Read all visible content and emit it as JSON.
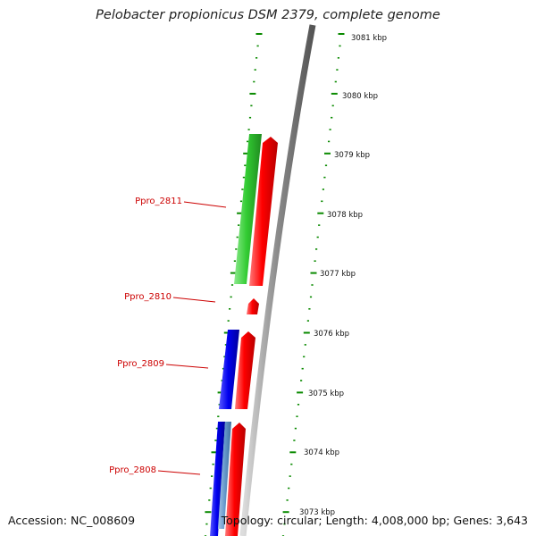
{
  "title": "Pelobacter propionicus DSM 2379, complete genome",
  "accession": "Accession: NC_008609",
  "summary": "Topology: circular; Length: 4,008,000 bp; Genes: 3,643",
  "colors": {
    "backbone": "#9a9a9a",
    "ticks": "#0a8a00",
    "gene_label": "#cc0000",
    "forward_cds_rna": "#ff0000",
    "reverse_cds_green": "#33cc33",
    "reverse_cds_blue": "#0000ee",
    "reverse_cds_lightblue": "#6699cc"
  },
  "ruler_labels": [
    "3081 kbp",
    "3080 kbp",
    "3079 kbp",
    "3078 kbp",
    "3077 kbp",
    "3076 kbp",
    "3075 kbp",
    "3074 kbp",
    "3073 kbp"
  ],
  "gene_labels": [
    "Ppro_2811",
    "Ppro_2810",
    "Ppro_2809",
    "Ppro_2808"
  ]
}
